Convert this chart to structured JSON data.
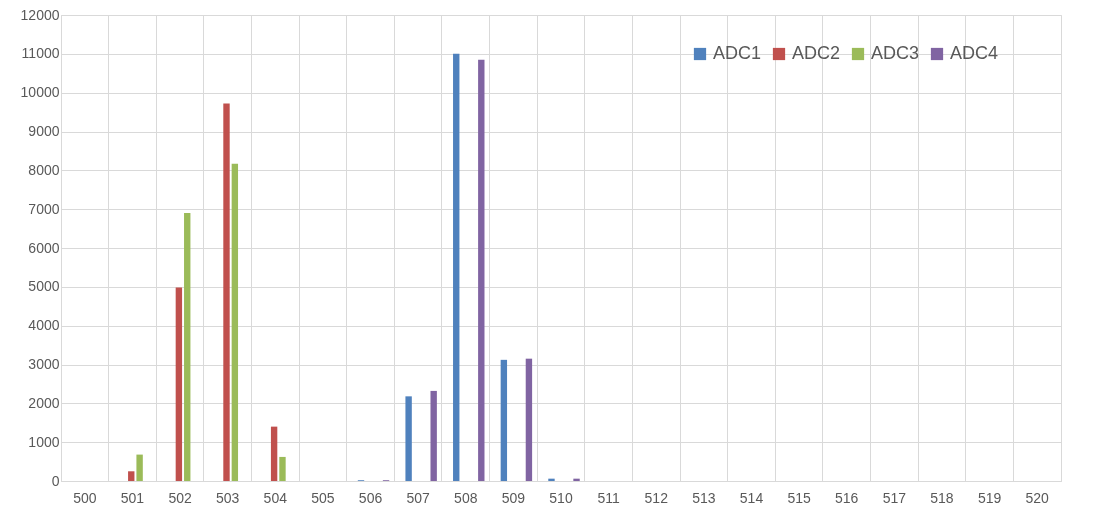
{
  "chart_data": {
    "type": "bar",
    "categories": [
      "500",
      "501",
      "502",
      "503",
      "504",
      "505",
      "506",
      "507",
      "508",
      "509",
      "510",
      "511",
      "512",
      "513",
      "514",
      "515",
      "516",
      "517",
      "518",
      "519",
      "520"
    ],
    "series": [
      {
        "name": "ADC1",
        "color": "#4f81bd",
        "values": [
          0,
          0,
          0,
          0,
          0,
          0,
          20,
          2180,
          11000,
          3120,
          60,
          0,
          0,
          0,
          0,
          0,
          0,
          0,
          0,
          0,
          0
        ]
      },
      {
        "name": "ADC2",
        "color": "#c0504d",
        "values": [
          0,
          250,
          4980,
          9720,
          1400,
          0,
          0,
          0,
          0,
          0,
          0,
          0,
          0,
          0,
          0,
          0,
          0,
          0,
          0,
          0,
          0
        ]
      },
      {
        "name": "ADC3",
        "color": "#9bbb59",
        "values": [
          0,
          680,
          6900,
          8170,
          620,
          0,
          0,
          0,
          0,
          0,
          0,
          0,
          0,
          0,
          0,
          0,
          0,
          0,
          0,
          0,
          0
        ]
      },
      {
        "name": "ADC4",
        "color": "#8064a2",
        "values": [
          0,
          0,
          0,
          0,
          0,
          0,
          20,
          2320,
          10850,
          3150,
          60,
          0,
          0,
          0,
          0,
          0,
          0,
          0,
          0,
          0,
          0
        ]
      }
    ],
    "ylim": [
      0,
      12000
    ],
    "yticks": [
      0,
      1000,
      2000,
      3000,
      4000,
      5000,
      6000,
      7000,
      8000,
      9000,
      10000,
      11000,
      12000
    ],
    "grid": true,
    "legend": "top right"
  }
}
